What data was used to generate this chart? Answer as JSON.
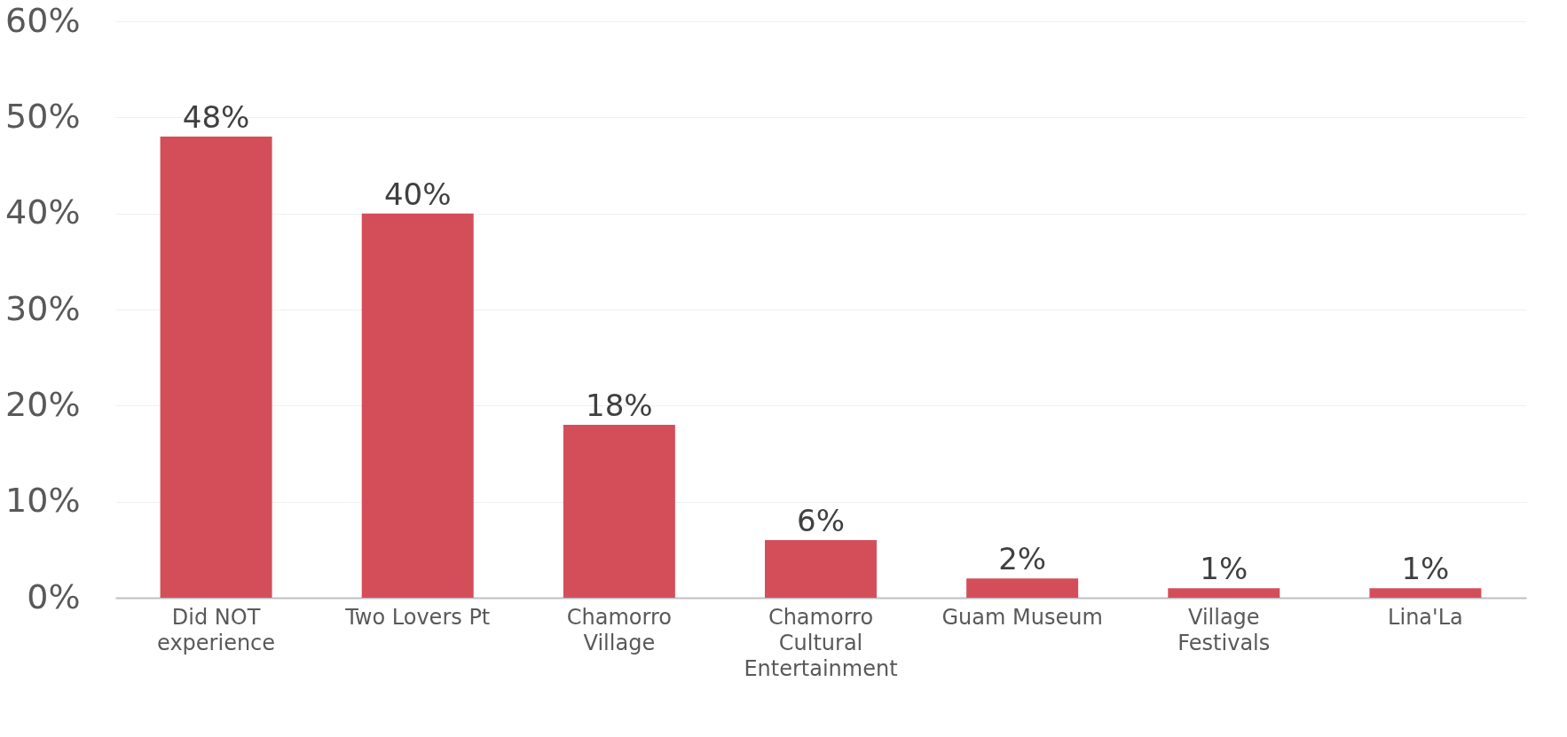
{
  "chart_data": {
    "type": "bar",
    "categories": [
      "Did NOT experience",
      "Two Lovers Pt",
      "Chamorro Village",
      "Chamorro Cultural Entertainment",
      "Guam Museum",
      "Village Festivals",
      "Lina'La"
    ],
    "values": [
      48,
      40,
      18,
      6,
      2,
      1,
      1
    ],
    "value_labels": [
      "48%",
      "40%",
      "18%",
      "6%",
      "2%",
      "1%",
      "1%"
    ],
    "color": "#d44e5a",
    "ylim": [
      0,
      60
    ],
    "yticks": [
      {
        "value": 0,
        "label": "0%"
      },
      {
        "value": 10,
        "label": "10%"
      },
      {
        "value": 20,
        "label": "20%"
      },
      {
        "value": 30,
        "label": "30%"
      },
      {
        "value": 40,
        "label": "40%"
      },
      {
        "value": 50,
        "label": "50%"
      },
      {
        "value": 60,
        "label": "60%"
      }
    ],
    "grid": "y"
  }
}
